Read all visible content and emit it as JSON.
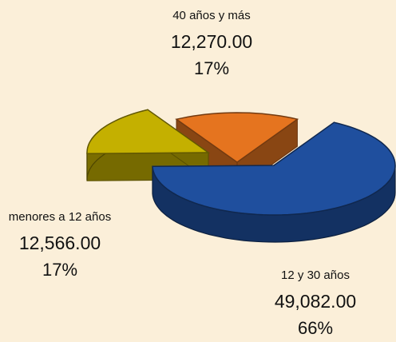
{
  "chart_data": {
    "type": "pie",
    "categories": [
      "40 años y más",
      "12 y 30 años",
      "menores a 12 años"
    ],
    "values": [
      12270,
      49082,
      12566
    ],
    "value_labels": [
      "12,270.00",
      "49,082.00",
      "12,566.00"
    ],
    "percentages": [
      17,
      66,
      17
    ],
    "percent_labels": [
      "17%",
      "66%",
      "17%"
    ],
    "colors": [
      "#e5741f",
      "#1f4f9e",
      "#c4b000"
    ]
  }
}
